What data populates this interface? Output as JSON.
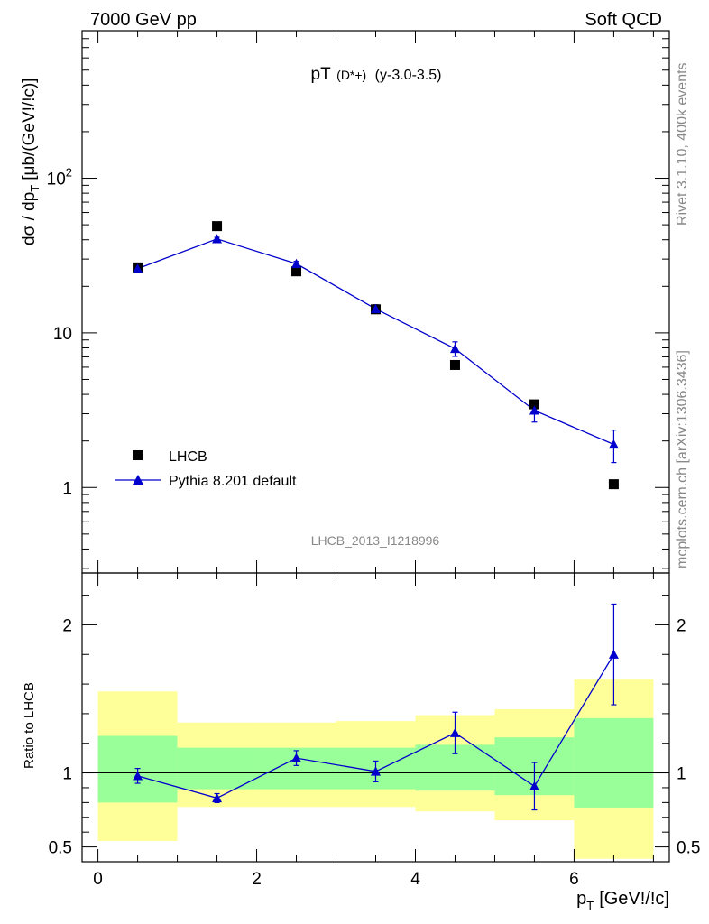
{
  "header": {
    "left": "7000 GeV pp",
    "right": "Soft QCD"
  },
  "title": {
    "main": "pT",
    "particle": "(D*+)",
    "cut": "(y-3.0-3.5)"
  },
  "side_labels": {
    "rivet": "Rivet 3.1.10,  400k events",
    "mcplots": "mcplots.cern.ch [arXiv:1306.3436]"
  },
  "analysis_id": "LHCB_2013_I1218996",
  "axes": {
    "ylabel_main": "dσ / dp",
    "ylabel_main_sub": "T",
    "ylabel_main_unit": "[μb/(GeV!/!c)]",
    "ylabel_ratio": "Ratio to LHCB",
    "xlabel": "p",
    "xlabel_sub": "T",
    "xlabel_unit": "[GeV!/!c]"
  },
  "colors": {
    "data": "#000000",
    "mc": "#0000cc",
    "band_outer": "#ffff99",
    "band_inner": "#99ff99"
  },
  "chart_data": [
    {
      "type": "scatter",
      "panel": "main",
      "yscale": "log",
      "xlim": [
        -0.2,
        7.2
      ],
      "ylim": [
        0.28,
        900
      ],
      "x_ticks": [
        0,
        2,
        4,
        6
      ],
      "y_ticks": [
        {
          "value": 1,
          "label": "1"
        },
        {
          "value": 10,
          "label": "10"
        },
        {
          "value": 100,
          "label": "10",
          "sup": "2"
        }
      ],
      "series": [
        {
          "name": "LHCB",
          "kind": "data",
          "marker": "square",
          "x": [
            0.5,
            1.5,
            2.5,
            3.5,
            4.5,
            5.5,
            6.5
          ],
          "y": [
            26.5,
            49,
            25,
            14.2,
            6.2,
            3.45,
            1.05
          ]
        },
        {
          "name": "Pythia 8.201 default",
          "kind": "mc",
          "marker": "triangle",
          "x": [
            0.5,
            1.5,
            2.5,
            3.5,
            4.5,
            5.5,
            6.5
          ],
          "y": [
            26,
            40.5,
            28,
            14.3,
            7.9,
            3.15,
            1.9
          ],
          "err_low": [
            0.5,
            1.0,
            1.0,
            0.9,
            0.85,
            0.5,
            0.45
          ],
          "err_high": [
            0.5,
            1.0,
            1.0,
            0.9,
            0.85,
            0.5,
            0.45
          ]
        }
      ]
    },
    {
      "type": "scatter",
      "panel": "ratio",
      "xlim": [
        -0.2,
        7.2
      ],
      "ylim": [
        0.4,
        2.35
      ],
      "x_ticks": [
        0,
        2,
        4,
        6
      ],
      "y_ticks": [
        0.5,
        1,
        2
      ],
      "bins": [
        {
          "lo": 0,
          "hi": 1,
          "band_outer": [
            0.54,
            1.55
          ],
          "band_inner": [
            0.8,
            1.25
          ]
        },
        {
          "lo": 1,
          "hi": 2,
          "band_outer": [
            0.77,
            1.34
          ],
          "band_inner": [
            0.89,
            1.17
          ]
        },
        {
          "lo": 2,
          "hi": 3,
          "band_outer": [
            0.77,
            1.34
          ],
          "band_inner": [
            0.89,
            1.17
          ]
        },
        {
          "lo": 3,
          "hi": 4,
          "band_outer": [
            0.77,
            1.35
          ],
          "band_inner": [
            0.89,
            1.17
          ]
        },
        {
          "lo": 4,
          "hi": 5,
          "band_outer": [
            0.74,
            1.39
          ],
          "band_inner": [
            0.88,
            1.19
          ]
        },
        {
          "lo": 5,
          "hi": 6,
          "band_outer": [
            0.68,
            1.43
          ],
          "band_inner": [
            0.85,
            1.24
          ]
        },
        {
          "lo": 6,
          "hi": 7,
          "band_outer": [
            0.42,
            1.63
          ],
          "band_inner": [
            0.76,
            1.37
          ]
        }
      ],
      "series": [
        {
          "name": "Pythia 8.201 default",
          "kind": "mc",
          "x": [
            0.5,
            1.5,
            2.5,
            3.5,
            4.5,
            5.5,
            6.5
          ],
          "y": [
            0.98,
            0.83,
            1.1,
            1.01,
            1.27,
            0.91,
            1.8
          ],
          "err_low": [
            0.05,
            0.03,
            0.05,
            0.07,
            0.14,
            0.16,
            0.34
          ],
          "err_high": [
            0.05,
            0.03,
            0.05,
            0.07,
            0.14,
            0.16,
            0.34
          ]
        }
      ]
    }
  ]
}
